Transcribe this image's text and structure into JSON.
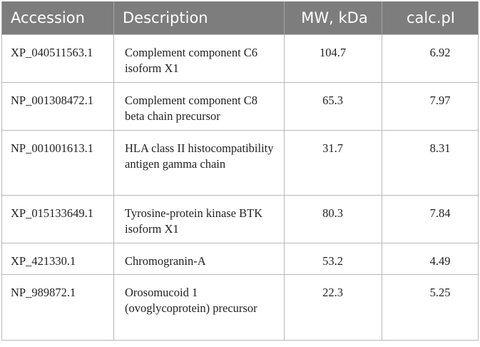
{
  "table": {
    "headers": [
      "Accession",
      "Description",
      "MW, kDa",
      "calc.pI"
    ],
    "rows": [
      {
        "accession": "XP_040511563.1",
        "description": "Complement component C6 isoform X1",
        "mw": "104.7",
        "pi": "6.92"
      },
      {
        "accession": "NP_001308472.1",
        "description": "Complement component C8 beta chain precursor",
        "mw": "65.3",
        "pi": "7.97"
      },
      {
        "accession": "NP_001001613.1",
        "description": "HLA class II histocompatibility antigen gamma chain",
        "mw": "31.7",
        "pi": "8.31"
      },
      {
        "accession": "XP_015133649.1",
        "description": "Tyrosine-protein kinase BTK isoform X1",
        "mw": "80.3",
        "pi": "7.84"
      },
      {
        "accession": "XP_421330.1",
        "description": "Chromogranin-A",
        "mw": "53.2",
        "pi": "4.49"
      },
      {
        "accession": "NP_989872.1",
        "description": "Orosomucoid 1 (ovoglycoprotein) precursor",
        "mw": "22.3",
        "pi": "5.25"
      }
    ]
  }
}
